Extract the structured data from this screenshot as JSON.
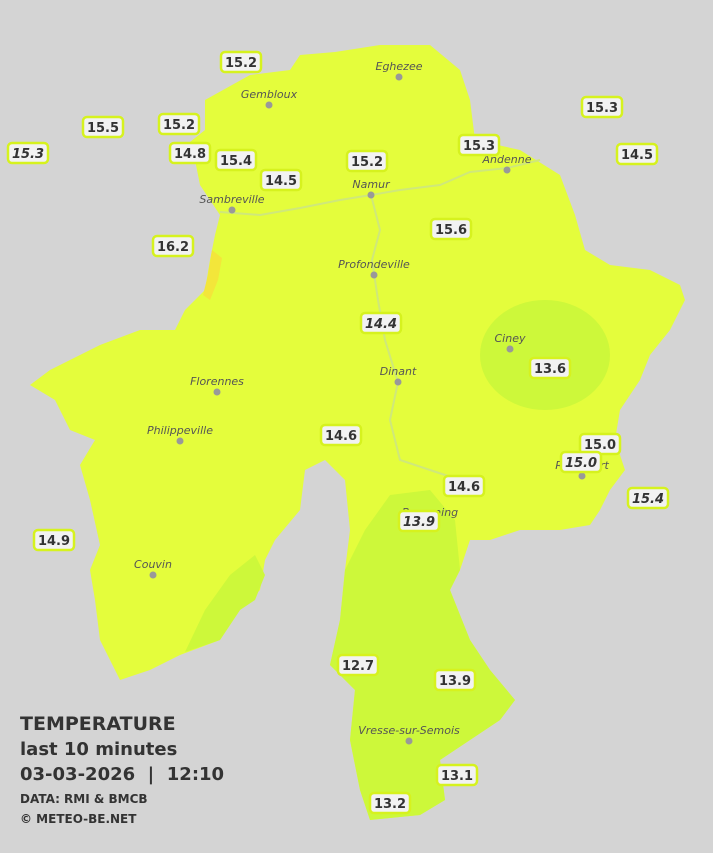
{
  "legend": {
    "title": "TEMPERATURE",
    "subtitle": "last 10 minutes",
    "datetime": "03-03-2026  |  12:10",
    "source": "DATA: RMI & BMCB",
    "credit": "© METEO-BE.NET"
  },
  "cities": [
    "Eghezee",
    "Gembloux",
    "Andenne",
    "Namur",
    "Sambreville",
    "Profondeville",
    "Ciney",
    "Dinant",
    "Florennes",
    "Philippeville",
    "Rochefort",
    "Beauraing",
    "Couvin",
    "Vresse-sur-Semois"
  ],
  "stations": [
    {
      "value": "15.2",
      "italic": false
    },
    {
      "value": "15.5",
      "italic": false
    },
    {
      "value": "15.2",
      "italic": false
    },
    {
      "value": "15.3",
      "italic": true
    },
    {
      "value": "14.8",
      "italic": false
    },
    {
      "value": "15.4",
      "italic": false
    },
    {
      "value": "14.5",
      "italic": false
    },
    {
      "value": "15.2",
      "italic": false
    },
    {
      "value": "15.3",
      "italic": false
    },
    {
      "value": "15.3",
      "italic": false
    },
    {
      "value": "14.5",
      "italic": false
    },
    {
      "value": "16.2",
      "italic": false
    },
    {
      "value": "15.6",
      "italic": false
    },
    {
      "value": "14.4",
      "italic": true
    },
    {
      "value": "13.6",
      "italic": false
    },
    {
      "value": "14.6",
      "italic": false
    },
    {
      "value": "15.0",
      "italic": false
    },
    {
      "value": "15.0",
      "italic": true
    },
    {
      "value": "14.6",
      "italic": false
    },
    {
      "value": "15.4",
      "italic": true
    },
    {
      "value": "13.9",
      "italic": true
    },
    {
      "value": "14.9",
      "italic": false
    },
    {
      "value": "12.7",
      "italic": false
    },
    {
      "value": "13.9",
      "italic": false
    },
    {
      "value": "13.1",
      "italic": false
    },
    {
      "value": "13.2",
      "italic": false
    }
  ]
}
